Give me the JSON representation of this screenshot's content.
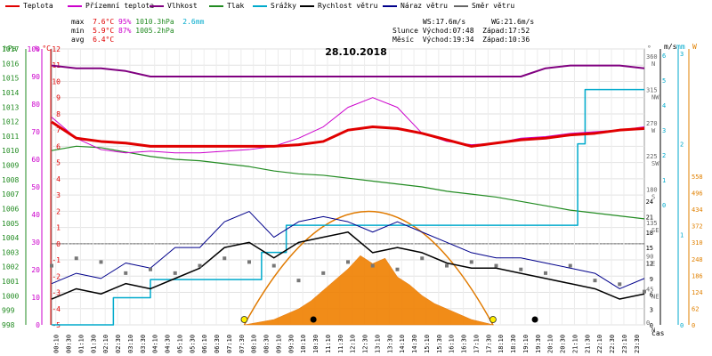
{
  "legend": [
    {
      "label": "Teplota",
      "color": "#e00000"
    },
    {
      "label": "Přízemní teplota",
      "color": "#cc00cc"
    },
    {
      "label": "Vlhkost",
      "color": "#800080"
    },
    {
      "label": "Tlak",
      "color": "#228b22"
    },
    {
      "label": "Srážky",
      "color": "#00aacc"
    },
    {
      "label": "Rychlost větru",
      "color": "#000000"
    },
    {
      "label": "Náraz větru",
      "color": "#00008b"
    },
    {
      "label": "Směr větru",
      "color": "#666666"
    }
  ],
  "stats": {
    "max_label": "max",
    "max_temp": "7.6°C",
    "max_hum": "95%",
    "max_press": "1010.3hPa",
    "max_rain": "2.6mm",
    "min_label": "min",
    "min_temp": "5.9°C",
    "min_hum": "87%",
    "min_press": "1005.2hPa",
    "avg_label": "avg",
    "avg_temp": "6.4°C",
    "ws": "WS:17.6m/s",
    "wg": "WG:21.6m/s",
    "sun_label": "Slunce",
    "sunrise": "Východ:07:48",
    "sunset": "Západ:17:52",
    "moon_label": "Měsíc",
    "moonrise": "Východ:19:34",
    "moonset": "Západ:10:36"
  },
  "date": "28.10.2018",
  "axis_units": {
    "hpa": "hPa",
    "pct": "%",
    "degc": "°C",
    "deg": "°",
    "ms": "m/s",
    "mm": "mm",
    "wm2": "W",
    "cas": "čas"
  },
  "chart_data": {
    "type": "line",
    "title": "28.10.2018",
    "x_ticks": [
      "00:10",
      "00:30",
      "01:10",
      "01:30",
      "02:10",
      "02:30",
      "03:10",
      "03:30",
      "04:10",
      "04:30",
      "05:10",
      "05:30",
      "06:10",
      "06:30",
      "07:10",
      "07:30",
      "08:10",
      "08:30",
      "09:10",
      "09:30",
      "10:10",
      "10:30",
      "11:10",
      "11:30",
      "12:10",
      "12:30",
      "13:10",
      "13:30",
      "14:10",
      "14:30",
      "15:10",
      "15:30",
      "16:10",
      "16:30",
      "17:10",
      "17:30",
      "18:10",
      "18:30",
      "19:10",
      "19:30",
      "20:10",
      "20:30",
      "21:10",
      "21:30",
      "22:10",
      "22:30",
      "23:10",
      "23:30"
    ],
    "xlabel": "čas",
    "axes": {
      "pressure_hpa": {
        "ticks": [
          "1017",
          "1016",
          "1015",
          "1014",
          "1013",
          "1012",
          "1011",
          "1010",
          "1009",
          "1008",
          "1007",
          "1006",
          "1005",
          "1004",
          "1003",
          "1002",
          "1001",
          "1000",
          "999",
          "998"
        ],
        "range": [
          998,
          1017
        ]
      },
      "humidity_pct": {
        "ticks": [
          "100",
          "90",
          "80",
          "70",
          "60",
          "50",
          "40",
          "30",
          "20",
          "10",
          "0"
        ],
        "range": [
          0,
          100
        ]
      },
      "temperature_c": {
        "ticks": [
          "12",
          "11",
          "10",
          "9",
          "8",
          "7",
          "6",
          "5",
          "4",
          "3",
          "2",
          "1",
          "0",
          "-1",
          "-2",
          "-3",
          "-4",
          "-5"
        ],
        "range": [
          -5,
          12
        ]
      },
      "wind_dir_deg": {
        "ticks": [
          "360",
          "315",
          "270",
          "225",
          "180",
          "135",
          "90",
          "45",
          "0"
        ],
        "dirs": [
          "N",
          "NW",
          "W",
          "SW",
          "S",
          "SE",
          "E",
          "NE",
          "N"
        ]
      },
      "wind_ms": {
        "ticks": [
          "6",
          "5",
          "4",
          "3",
          "2",
          "1",
          "0"
        ]
      },
      "wind_ms_lower": {
        "ticks": [
          "24",
          "21",
          "18",
          "15",
          "12",
          "9",
          "6",
          "3",
          "0"
        ]
      },
      "rain_mm": {
        "ticks": [
          "3",
          "2",
          "1",
          "0"
        ]
      },
      "solar_wm2": {
        "ticks": [
          "558",
          "496",
          "434",
          "372",
          "310",
          "248",
          "186",
          "124",
          "62",
          "0"
        ]
      }
    },
    "series": [
      {
        "name": "Teplota",
        "unit": "°C",
        "x": [
          0,
          1,
          2,
          3,
          4,
          5,
          6,
          7,
          8,
          9,
          10,
          11,
          12,
          13,
          14,
          15,
          16,
          17,
          18,
          19,
          20,
          21,
          22,
          23,
          24
        ],
        "values": [
          7.5,
          6.5,
          6.3,
          6.2,
          6.0,
          6.0,
          6.0,
          6.0,
          6.0,
          6.0,
          6.1,
          6.3,
          7.0,
          7.2,
          7.1,
          6.8,
          6.4,
          6.0,
          6.2,
          6.4,
          6.5,
          6.7,
          6.8,
          7.0,
          7.1
        ]
      },
      {
        "name": "Přízemní teplota",
        "unit": "°C",
        "x": [
          0,
          1,
          2,
          3,
          4,
          5,
          6,
          7,
          8,
          9,
          10,
          11,
          12,
          13,
          14,
          15,
          16,
          17,
          18,
          19,
          20,
          21,
          22,
          23,
          24
        ],
        "values": [
          7.8,
          6.5,
          5.8,
          5.6,
          5.7,
          5.6,
          5.6,
          5.7,
          5.8,
          6.0,
          6.5,
          7.2,
          8.4,
          9.0,
          8.4,
          6.8,
          6.3,
          6.1,
          6.2,
          6.5,
          6.6,
          6.8,
          6.9,
          7.0,
          7.2
        ]
      },
      {
        "name": "Vlhkost",
        "unit": "%",
        "x": [
          0,
          1,
          2,
          3,
          4,
          5,
          6,
          7,
          8,
          9,
          10,
          11,
          12,
          13,
          14,
          15,
          16,
          17,
          18,
          19,
          20,
          21,
          22,
          23,
          24
        ],
        "values": [
          94,
          93,
          93,
          92,
          90,
          90,
          90,
          90,
          90,
          90,
          90,
          90,
          90,
          90,
          90,
          90,
          90,
          90,
          90,
          90,
          93,
          94,
          94,
          94,
          93
        ]
      },
      {
        "name": "Tlak",
        "unit": "hPa",
        "x": [
          0,
          1,
          2,
          3,
          4,
          5,
          6,
          7,
          8,
          9,
          10,
          11,
          12,
          13,
          14,
          15,
          16,
          17,
          18,
          19,
          20,
          21,
          22,
          23,
          24
        ],
        "values": [
          1010.0,
          1010.3,
          1010.2,
          1009.9,
          1009.6,
          1009.4,
          1009.3,
          1009.1,
          1008.9,
          1008.6,
          1008.4,
          1008.3,
          1008.1,
          1007.9,
          1007.7,
          1007.5,
          1007.2,
          1007.0,
          1006.8,
          1006.5,
          1006.2,
          1005.9,
          1005.7,
          1005.5,
          1005.3
        ]
      },
      {
        "name": "Srážky",
        "unit": "mm",
        "x": [
          0,
          2,
          2.5,
          4,
          5,
          7,
          8.5,
          9.5,
          12,
          16,
          20.5,
          21.3,
          21.6,
          24
        ],
        "values": [
          0,
          0,
          0.3,
          0.5,
          0.5,
          0.5,
          0.8,
          1.1,
          1.1,
          1.1,
          1.1,
          2.0,
          2.6,
          2.6
        ]
      },
      {
        "name": "Rychlost větru",
        "unit": "m/s",
        "x": [
          0,
          1,
          2,
          3,
          4,
          5,
          6,
          7,
          8,
          9,
          10,
          11,
          12,
          13,
          14,
          15,
          16,
          17,
          18,
          19,
          20,
          21,
          22,
          23,
          24
        ],
        "values": [
          5,
          7,
          6,
          8,
          7,
          9,
          11,
          15,
          16,
          13,
          16,
          17,
          18,
          14,
          15,
          14,
          12,
          11,
          11,
          10,
          9,
          8,
          7,
          5,
          6
        ]
      },
      {
        "name": "Náraz větru",
        "unit": "m/s",
        "x": [
          0,
          1,
          2,
          3,
          4,
          5,
          6,
          7,
          8,
          9,
          10,
          11,
          12,
          13,
          14,
          15,
          16,
          17,
          18,
          19,
          20,
          21,
          22,
          23,
          24
        ],
        "values": [
          8,
          10,
          9,
          12,
          11,
          15,
          15,
          20,
          22,
          17,
          20,
          21,
          20,
          18,
          20,
          18,
          16,
          14,
          13,
          13,
          12,
          11,
          10,
          7,
          9
        ]
      },
      {
        "name": "Směr větru",
        "unit": "°",
        "x": [
          0,
          1,
          2,
          3,
          4,
          5,
          6,
          7,
          8,
          9,
          10,
          11,
          12,
          13,
          14,
          15,
          16,
          17,
          18,
          19,
          20,
          21,
          22,
          23,
          24
        ],
        "values": [
          80,
          90,
          85,
          70,
          75,
          70,
          80,
          90,
          85,
          80,
          60,
          70,
          85,
          80,
          75,
          90,
          80,
          85,
          80,
          75,
          70,
          80,
          60,
          55,
          45
        ]
      },
      {
        "name": "Solar",
        "unit": "W",
        "x": [
          7.8,
          9,
          10,
          10.5,
          11,
          11.5,
          12,
          12.5,
          13,
          13.5,
          14,
          14.5,
          15,
          15.5,
          16,
          16.5,
          17,
          17.9
        ],
        "values": [
          0,
          20,
          60,
          90,
          130,
          170,
          210,
          260,
          230,
          250,
          180,
          150,
          110,
          80,
          60,
          40,
          20,
          0
        ]
      }
    ],
    "markers": {
      "sun_rise_h": 7.8,
      "sun_set_h": 17.87,
      "moon_rise_h": 19.57,
      "moon_set_h": 10.6
    }
  }
}
